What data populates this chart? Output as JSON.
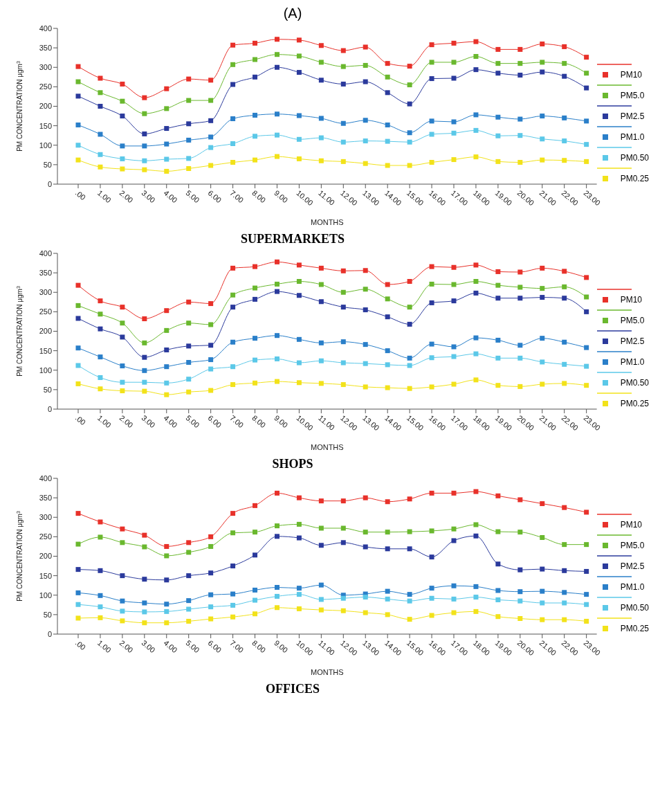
{
  "chart_data": [
    {
      "type": "line",
      "title": "(A)",
      "xlabel": "MONTHS",
      "ylabel": "PM CONCENTRATION μgm$^{3}$",
      "annotations": [
        "SUPERMARKETS"
      ],
      "categories": [
        ".00",
        "1.00",
        "2.00",
        "3.00",
        "4.00",
        "5.00",
        "6.00",
        "7.00",
        "8.00",
        "9.00",
        "10.00",
        "11.00",
        "12.00",
        "13.00",
        "14.00",
        "15.00",
        "16.00",
        "17.00",
        "18.00",
        "19.00",
        "20.00",
        "21.00",
        "22.00",
        "23.00"
      ],
      "ylim": [
        0,
        400
      ],
      "yticks": [
        0,
        50,
        100,
        150,
        200,
        250,
        300,
        350,
        400
      ],
      "legend": "right",
      "marker": "square",
      "line_style": "solid",
      "series": [
        {
          "name": "PM10",
          "color": "#e8312a",
          "values": [
            302,
            272,
            257,
            222,
            245,
            270,
            267,
            357,
            362,
            372,
            370,
            356,
            343,
            352,
            310,
            303,
            358,
            362,
            366,
            346,
            346,
            360,
            353,
            326
          ]
        },
        {
          "name": "PM5.0",
          "color": "#6ab82e",
          "values": [
            263,
            235,
            213,
            181,
            194,
            215,
            215,
            307,
            320,
            333,
            329,
            313,
            302,
            305,
            275,
            255,
            313,
            313,
            328,
            310,
            310,
            313,
            310,
            285
          ]
        },
        {
          "name": "PM2.5",
          "color": "#2b3a9c",
          "values": [
            226,
            200,
            175,
            129,
            143,
            155,
            163,
            256,
            275,
            300,
            287,
            267,
            257,
            263,
            235,
            206,
            271,
            272,
            294,
            285,
            280,
            288,
            277,
            247
          ]
        },
        {
          "name": "PM1.0",
          "color": "#2a7fc9",
          "values": [
            152,
            128,
            98,
            98,
            103,
            113,
            121,
            168,
            177,
            180,
            176,
            169,
            156,
            164,
            152,
            132,
            162,
            160,
            178,
            172,
            167,
            175,
            170,
            162
          ]
        },
        {
          "name": "PM0.50",
          "color": "#5bc8e8",
          "values": [
            100,
            76,
            65,
            60,
            64,
            66,
            94,
            104,
            123,
            126,
            115,
            119,
            108,
            111,
            110,
            108,
            128,
            131,
            138,
            124,
            125,
            116,
            111,
            102
          ]
        },
        {
          "name": "PM0.25",
          "color": "#f2e21a",
          "values": [
            62,
            44,
            39,
            37,
            33,
            40,
            48,
            56,
            62,
            71,
            65,
            60,
            58,
            53,
            48,
            48,
            56,
            63,
            70,
            58,
            56,
            62,
            61,
            58
          ]
        }
      ]
    },
    {
      "type": "line",
      "xlabel": "MONTHS",
      "ylabel": "PM CONCENTRATION μgm$^{3}$",
      "annotations": [
        "SHOPS"
      ],
      "categories": [
        ".00",
        "1.00",
        "2.00",
        "3.00",
        "4.00",
        "5.00",
        "6.00",
        "7.00",
        "8.00",
        "9.00",
        "10.00",
        "11.00",
        "12.00",
        "13.00",
        "14.00",
        "15.00",
        "16.00",
        "17.00",
        "18.00",
        "19.00",
        "20.00",
        "21.00",
        "22.00",
        "23.00"
      ],
      "ylim": [
        0,
        400
      ],
      "yticks": [
        0,
        50,
        100,
        150,
        200,
        250,
        300,
        350,
        400
      ],
      "legend": "right",
      "marker": "square",
      "line_style": "solid",
      "series": [
        {
          "name": "PM10",
          "color": "#e8312a",
          "values": [
            318,
            278,
            262,
            232,
            253,
            275,
            271,
            362,
            366,
            378,
            370,
            362,
            355,
            356,
            320,
            328,
            366,
            364,
            370,
            353,
            352,
            362,
            354,
            338
          ]
        },
        {
          "name": "PM5.0",
          "color": "#6ab82e",
          "values": [
            266,
            244,
            221,
            170,
            202,
            221,
            217,
            293,
            311,
            321,
            328,
            320,
            300,
            308,
            283,
            262,
            321,
            320,
            328,
            318,
            313,
            310,
            314,
            288
          ]
        },
        {
          "name": "PM2.5",
          "color": "#2b3a9c",
          "values": [
            233,
            206,
            185,
            133,
            152,
            162,
            164,
            262,
            282,
            302,
            292,
            276,
            262,
            255,
            237,
            218,
            273,
            278,
            298,
            285,
            285,
            287,
            285,
            250
          ]
        },
        {
          "name": "PM1.0",
          "color": "#2a7fc9",
          "values": [
            157,
            134,
            111,
            99,
            109,
            120,
            127,
            172,
            182,
            189,
            179,
            170,
            173,
            166,
            150,
            131,
            167,
            160,
            183,
            177,
            164,
            182,
            172,
            158
          ]
        },
        {
          "name": "PM0.50",
          "color": "#5bc8e8",
          "values": [
            112,
            81,
            69,
            69,
            67,
            77,
            103,
            109,
            126,
            129,
            119,
            124,
            119,
            117,
            114,
            112,
            132,
            135,
            142,
            131,
            131,
            121,
            115,
            110
          ]
        },
        {
          "name": "PM0.25",
          "color": "#f2e21a",
          "values": [
            65,
            52,
            47,
            46,
            37,
            44,
            48,
            63,
            67,
            71,
            68,
            66,
            63,
            57,
            55,
            53,
            57,
            64,
            75,
            61,
            58,
            64,
            66,
            61
          ]
        }
      ]
    },
    {
      "type": "line",
      "xlabel": "MONTHS",
      "ylabel": "PM CONCENTRATION μgm$^{3}$",
      "annotations": [
        "OFFICES"
      ],
      "categories": [
        ".00",
        "1.00",
        "2.00",
        "3.00",
        "4.00",
        "5.00",
        "6.00",
        "7.00",
        "8.00",
        "9.00",
        "10.00",
        "11.00",
        "12.00",
        "13.00",
        "14.00",
        "15.00",
        "16.00",
        "17.00",
        "18.00",
        "19.00",
        "20.00",
        "21.00",
        "22.00",
        "23.00"
      ],
      "ylim": [
        0,
        400
      ],
      "yticks": [
        0,
        50,
        100,
        150,
        200,
        250,
        300,
        350,
        400
      ],
      "legend": "right",
      "marker": "square",
      "line_style": "solid",
      "series": [
        {
          "name": "PM10",
          "color": "#e8312a",
          "values": [
            310,
            288,
            270,
            254,
            225,
            235,
            250,
            310,
            330,
            362,
            350,
            342,
            342,
            350,
            340,
            347,
            362,
            362,
            366,
            355,
            345,
            335,
            325,
            313
          ]
        },
        {
          "name": "PM5.0",
          "color": "#6ab82e",
          "values": [
            231,
            249,
            235,
            224,
            201,
            210,
            225,
            260,
            262,
            278,
            282,
            272,
            272,
            262,
            262,
            263,
            265,
            270,
            281,
            263,
            262,
            248,
            230,
            230
          ]
        },
        {
          "name": "PM2.5",
          "color": "#2b3a9c",
          "values": [
            166,
            163,
            150,
            141,
            139,
            150,
            157,
            175,
            203,
            251,
            247,
            228,
            235,
            224,
            219,
            219,
            198,
            240,
            252,
            180,
            165,
            167,
            163,
            161
          ]
        },
        {
          "name": "PM1.0",
          "color": "#2a7fc9",
          "values": [
            106,
            99,
            85,
            80,
            77,
            86,
            101,
            103,
            113,
            120,
            118,
            126,
            100,
            103,
            110,
            102,
            118,
            124,
            122,
            112,
            109,
            110,
            107,
            102
          ]
        },
        {
          "name": "PM0.50",
          "color": "#5bc8e8",
          "values": [
            76,
            70,
            59,
            57,
            58,
            64,
            70,
            74,
            87,
            97,
            102,
            89,
            92,
            95,
            90,
            85,
            92,
            90,
            95,
            88,
            85,
            80,
            80,
            76
          ]
        },
        {
          "name": "PM0.25",
          "color": "#f2e21a",
          "values": [
            41,
            42,
            34,
            29,
            29,
            33,
            39,
            44,
            52,
            68,
            65,
            62,
            60,
            55,
            50,
            38,
            48,
            55,
            58,
            45,
            40,
            37,
            37,
            33
          ]
        }
      ]
    }
  ]
}
